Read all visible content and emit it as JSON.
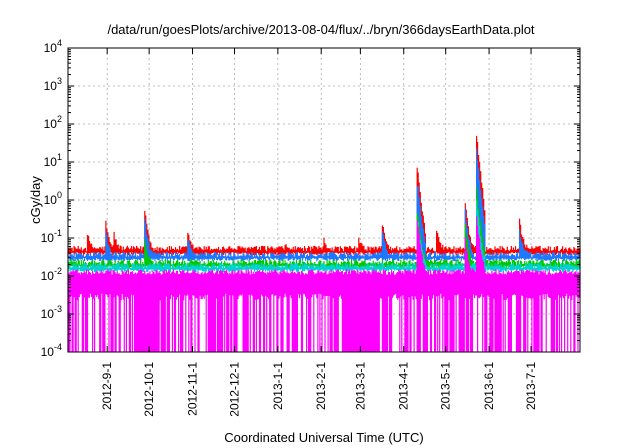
{
  "chart_data": {
    "type": "line",
    "title": "/data/run/goesPlots/archive/2013-08-04/flux/../bryn/366daysEarthData.plot",
    "xlabel": "Coordinated Universal Time (UTC)",
    "ylabel": "cGy/day",
    "yscale": "log",
    "ylim": [
      0.0001,
      10000
    ],
    "y_ticks": [
      {
        "value": 0.0001,
        "base": "10",
        "exp": "-4"
      },
      {
        "value": 0.001,
        "base": "10",
        "exp": "-3"
      },
      {
        "value": 0.01,
        "base": "10",
        "exp": "-2"
      },
      {
        "value": 0.1,
        "base": "10",
        "exp": "-1"
      },
      {
        "value": 1,
        "base": "10",
        "exp": "0"
      },
      {
        "value": 10,
        "base": "10",
        "exp": "1"
      },
      {
        "value": 100,
        "base": "10",
        "exp": "2"
      },
      {
        "value": 1000,
        "base": "10",
        "exp": "3"
      },
      {
        "value": 10000,
        "base": "10",
        "exp": "4"
      }
    ],
    "xlim": [
      "2012-08-04",
      "2013-08-05"
    ],
    "x_ticks": [
      "2012-9-1",
      "2012-10-1",
      "2012-11-1",
      "2012-12-1",
      "2013-1-1",
      "2013-2-1",
      "2013-3-1",
      "2013-4-1",
      "2013-5-1",
      "2013-6-1",
      "2013-7-1"
    ],
    "x_tick_dates": [
      "2012-09-01",
      "2012-10-01",
      "2012-11-01",
      "2012-12-01",
      "2013-01-01",
      "2013-02-01",
      "2013-03-01",
      "2013-04-01",
      "2013-05-01",
      "2013-06-01",
      "2013-07-01"
    ],
    "grid": true,
    "series": [
      {
        "color": "#ff0000",
        "baseline": 0.05,
        "peaks": [
          {
            "date": "2012-08-18",
            "value": 0.12
          },
          {
            "date": "2012-08-31",
            "value": 0.28
          },
          {
            "date": "2012-09-06",
            "value": 0.13
          },
          {
            "date": "2012-09-28",
            "value": 0.55
          },
          {
            "date": "2012-10-29",
            "value": 0.12
          },
          {
            "date": "2013-01-06",
            "value": 0.06
          },
          {
            "date": "2013-02-03",
            "value": 0.09
          },
          {
            "date": "2013-02-28",
            "value": 0.09
          },
          {
            "date": "2013-03-17",
            "value": 0.23
          },
          {
            "date": "2013-04-11",
            "value": 6.0
          },
          {
            "date": "2013-04-25",
            "value": 0.15
          },
          {
            "date": "2013-05-15",
            "value": 0.85
          },
          {
            "date": "2013-05-23",
            "value": 50
          },
          {
            "date": "2013-06-23",
            "value": 0.28
          }
        ]
      },
      {
        "color": "#1e78ff",
        "baseline": 0.035,
        "peaks": [
          {
            "date": "2012-08-31",
            "value": 0.16
          },
          {
            "date": "2012-09-28",
            "value": 0.32
          },
          {
            "date": "2012-10-29",
            "value": 0.09
          },
          {
            "date": "2013-03-17",
            "value": 0.15
          },
          {
            "date": "2013-04-11",
            "value": 2.5
          },
          {
            "date": "2013-05-15",
            "value": 0.5
          },
          {
            "date": "2013-05-23",
            "value": 20
          },
          {
            "date": "2013-06-23",
            "value": 0.15
          }
        ]
      },
      {
        "color": "#00c800",
        "baseline": 0.022,
        "peaks": [
          {
            "date": "2012-09-28",
            "value": 0.08
          },
          {
            "date": "2013-04-11",
            "value": 0.5
          },
          {
            "date": "2013-05-15",
            "value": 0.2
          },
          {
            "date": "2013-05-23",
            "value": 2.0
          }
        ]
      },
      {
        "color": "#00d2d2",
        "baseline": 0.018,
        "peaks": [
          {
            "date": "2013-04-11",
            "value": 0.3
          },
          {
            "date": "2013-05-23",
            "value": 1.0
          }
        ]
      },
      {
        "color": "#ff00ff",
        "baseline": 0.012,
        "floor": 0.0023,
        "peaks": [
          {
            "date": "2013-04-11",
            "value": 0.25
          },
          {
            "date": "2013-05-15",
            "value": 0.1
          },
          {
            "date": "2013-05-23",
            "value": 0.4
          }
        ],
        "dropouts": [
          {
            "from": "2012-09-21",
            "to": "2012-10-08"
          },
          {
            "from": "2013-02-22",
            "to": "2013-03-14"
          }
        ]
      }
    ]
  }
}
